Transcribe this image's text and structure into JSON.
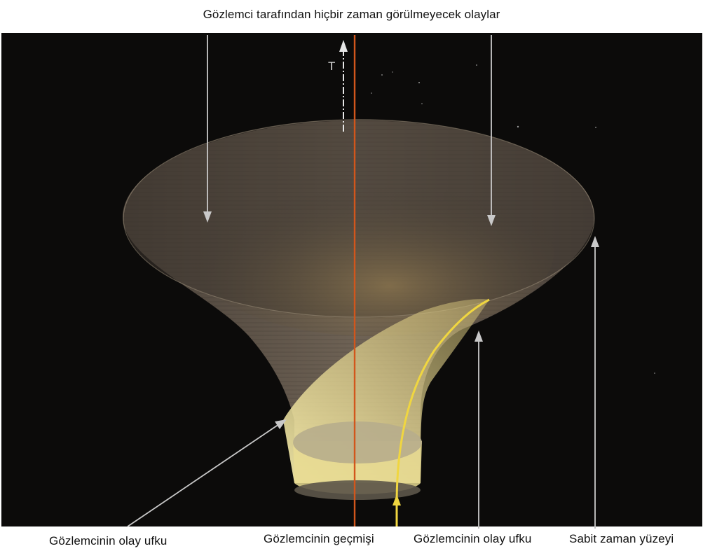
{
  "labels": {
    "top": "Gözlemci tarafından hiçbir zaman görülmeyecek olaylar",
    "observer_horizon_left": "Gözlemcinin olay ufku",
    "observer_past": "Gözlemcinin geçmişi",
    "observer_horizon_right": "Gözlemcinin olay ufku",
    "constant_time_surface": "Sabit zaman yüzeyi",
    "time_axis": "T"
  },
  "colors": {
    "background": "#0c0b0a",
    "funnel_surface": "#7d7060",
    "horizon_fill": "#e9dd8e",
    "worldline": "#d2561c",
    "past_curve": "#f0d640",
    "arrows": "#cfcfcf"
  }
}
